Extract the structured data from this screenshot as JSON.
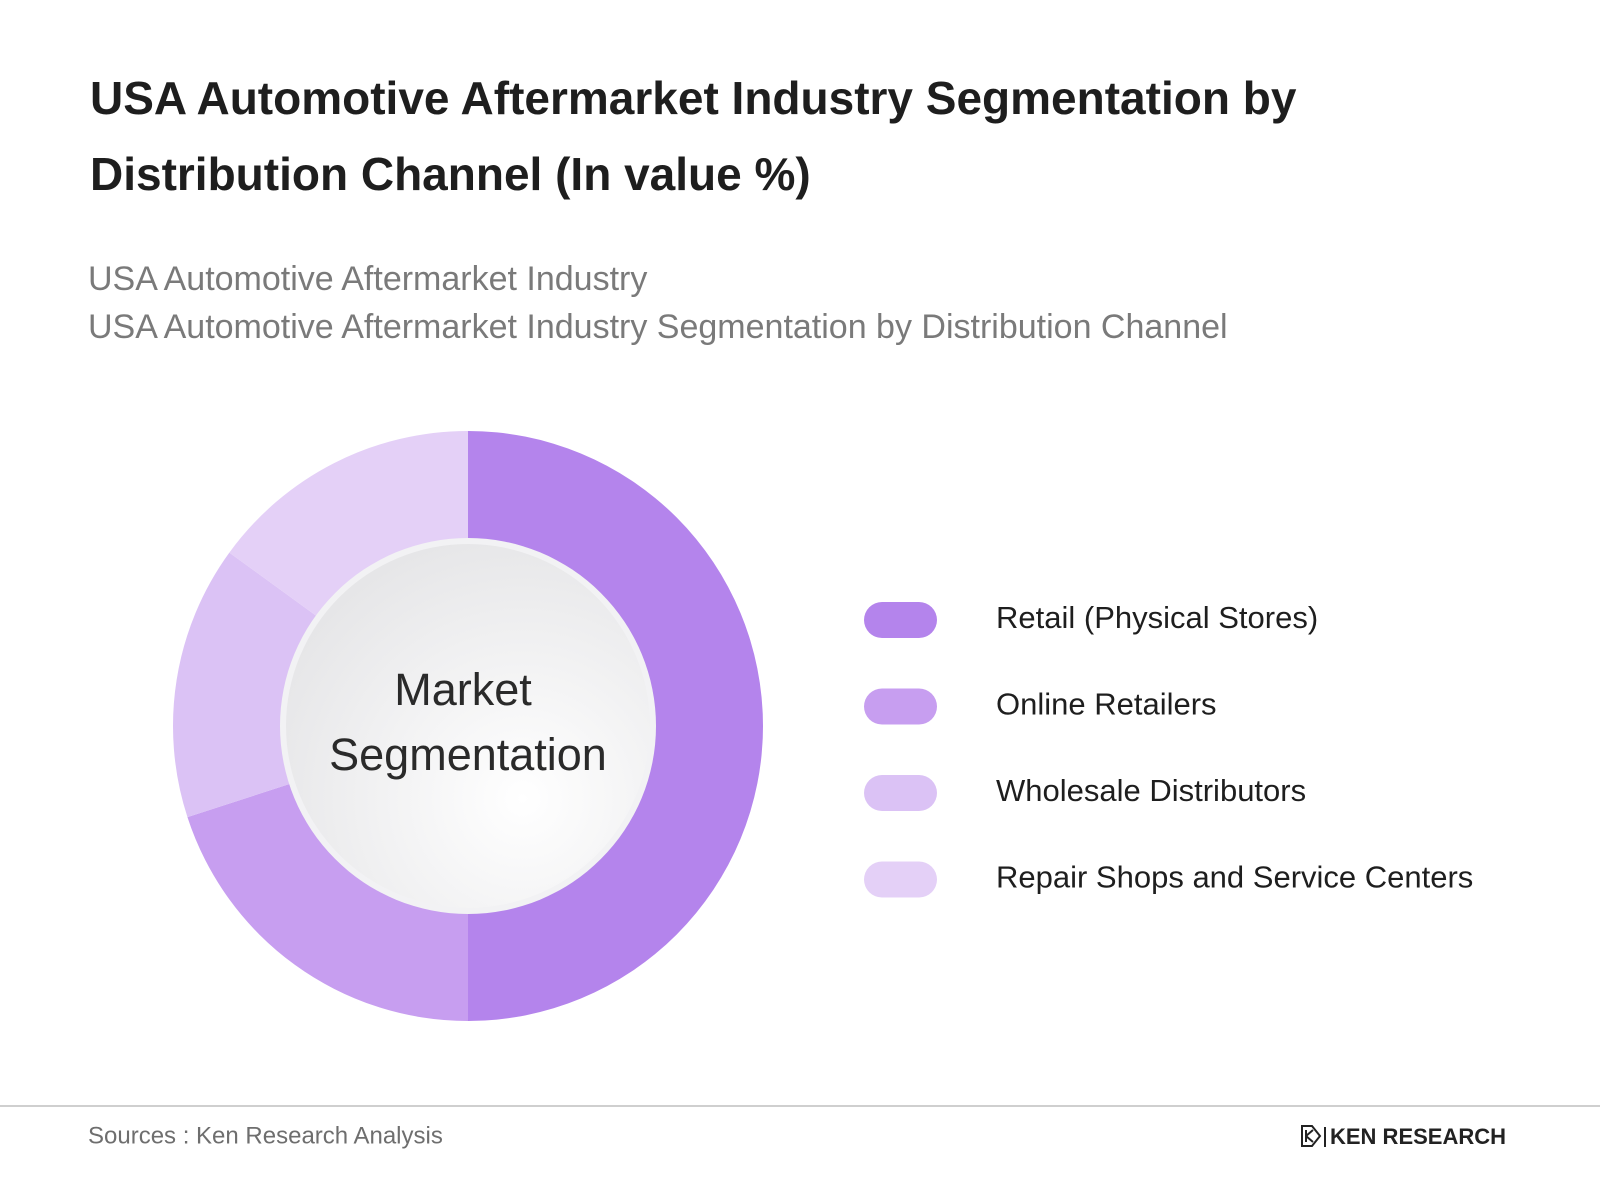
{
  "chart_data": {
    "type": "donut",
    "title": [
      "USA Automotive Aftermarket Industry Segmentation by",
      "Distribution Channel (In value %)"
    ],
    "subtitle": [
      "USA Automotive Aftermarket Industry",
      "USA Automotive Aftermarket Industry Segmentation by Distribution Channel"
    ],
    "center_label": [
      "Market",
      "Segmentation"
    ],
    "categories": [
      "Retail (Physical Stores)",
      "Online Retailers",
      "Wholesale Distributors",
      "Repair Shops and Service Centers"
    ],
    "values": [
      50,
      20,
      15,
      15
    ],
    "colors": [
      "#b484ec",
      "#c79ef0",
      "#dbc2f5",
      "#e4d0f7"
    ],
    "source": "Sources : Ken Research Analysis",
    "logo": "KEN RESEARCH"
  }
}
